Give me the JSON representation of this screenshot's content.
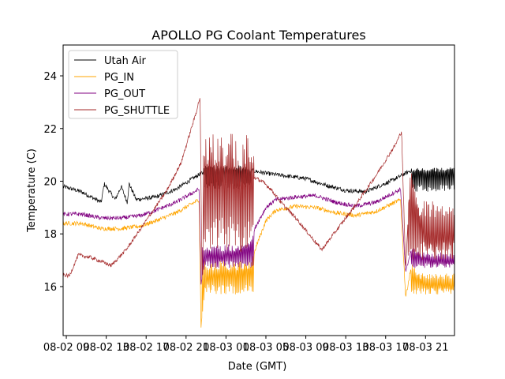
{
  "chart_data": {
    "type": "line",
    "title": "APOLLO PG Coolant Temperatures",
    "xlabel": "Date (GMT)",
    "ylabel": "Temperature (C)",
    "x_unit": "hours since 08-02 00:00 GMT",
    "xlim": [
      8.68,
      47.9
    ],
    "ylim": [
      14.14,
      25.17
    ],
    "x_ticks": [
      {
        "value": 9,
        "label": "08-02 09"
      },
      {
        "value": 13,
        "label": "08-02 13"
      },
      {
        "value": 17,
        "label": "08-02 17"
      },
      {
        "value": 21,
        "label": "08-02 21"
      },
      {
        "value": 25,
        "label": "08-03 01"
      },
      {
        "value": 29,
        "label": "08-03 05"
      },
      {
        "value": 33,
        "label": "08-03 09"
      },
      {
        "value": 37,
        "label": "08-03 13"
      },
      {
        "value": 41,
        "label": "08-03 17"
      },
      {
        "value": 45,
        "label": "08-03 21"
      }
    ],
    "y_ticks": [
      {
        "value": 16,
        "label": "16"
      },
      {
        "value": 18,
        "label": "18"
      },
      {
        "value": 20,
        "label": "20"
      },
      {
        "value": 22,
        "label": "22"
      },
      {
        "value": 24,
        "label": "24"
      }
    ],
    "grid": false,
    "legend_position": "top-left",
    "series": [
      {
        "name": "Utah Air",
        "color": "#000000",
        "noise": 0.08,
        "points": [
          [
            8.7,
            19.8
          ],
          [
            10.5,
            19.6
          ],
          [
            12.5,
            19.2
          ],
          [
            12.8,
            19.9
          ],
          [
            13.9,
            19.3
          ],
          [
            14.5,
            19.8
          ],
          [
            15.1,
            19.2
          ],
          [
            15.3,
            19.9
          ],
          [
            16.0,
            19.3
          ],
          [
            18.0,
            19.4
          ],
          [
            20.0,
            19.7
          ],
          [
            22.5,
            20.3
          ],
          [
            25.0,
            20.5
          ],
          [
            27.0,
            20.45
          ],
          [
            29.0,
            20.3
          ],
          [
            33.0,
            20.1
          ],
          [
            35.0,
            19.85
          ],
          [
            37.0,
            19.65
          ],
          [
            39.0,
            19.6
          ],
          [
            41.5,
            20.0
          ],
          [
            43.5,
            20.4
          ],
          [
            47.9,
            20.45
          ]
        ],
        "osc": [
          [
            22.8,
            27.5,
            19.7,
            20.6
          ],
          [
            43.6,
            47.9,
            19.6,
            20.5
          ]
        ]
      },
      {
        "name": "PG_IN",
        "color": "#ffa500",
        "noise": 0.08,
        "points": [
          [
            8.7,
            18.4
          ],
          [
            10.5,
            18.4
          ],
          [
            12.5,
            18.2
          ],
          [
            14.5,
            18.2
          ],
          [
            16.5,
            18.3
          ],
          [
            18.0,
            18.5
          ],
          [
            20.0,
            18.8
          ],
          [
            22.3,
            19.3
          ],
          [
            22.5,
            14.5
          ],
          [
            23.0,
            16.3
          ],
          [
            24.5,
            16.5
          ],
          [
            26.0,
            16.5
          ],
          [
            27.5,
            16.8
          ],
          [
            28.0,
            17.5
          ],
          [
            29.0,
            18.5
          ],
          [
            30.0,
            18.9
          ],
          [
            32.0,
            19.05
          ],
          [
            34.0,
            19.0
          ],
          [
            36.0,
            18.8
          ],
          [
            38.0,
            18.7
          ],
          [
            40.0,
            18.85
          ],
          [
            42.5,
            19.3
          ],
          [
            43.0,
            15.6
          ],
          [
            43.6,
            16.8
          ],
          [
            45.0,
            16.0
          ],
          [
            47.9,
            16.0
          ]
        ],
        "osc": [
          [
            22.6,
            27.8,
            15.7,
            17.0
          ],
          [
            43.5,
            47.9,
            15.7,
            16.5
          ]
        ]
      },
      {
        "name": "PG_OUT",
        "color": "#800080",
        "noise": 0.08,
        "points": [
          [
            8.7,
            18.75
          ],
          [
            10.5,
            18.75
          ],
          [
            12.5,
            18.6
          ],
          [
            14.5,
            18.6
          ],
          [
            16.5,
            18.7
          ],
          [
            18.0,
            18.9
          ],
          [
            20.0,
            19.2
          ],
          [
            22.3,
            19.7
          ],
          [
            22.5,
            16.1
          ],
          [
            23.0,
            17.2
          ],
          [
            24.5,
            17.1
          ],
          [
            26.0,
            17.3
          ],
          [
            27.5,
            17.7
          ],
          [
            28.0,
            18.3
          ],
          [
            29.0,
            19.0
          ],
          [
            30.0,
            19.3
          ],
          [
            32.0,
            19.4
          ],
          [
            34.0,
            19.45
          ],
          [
            36.0,
            19.2
          ],
          [
            38.0,
            19.05
          ],
          [
            40.0,
            19.2
          ],
          [
            42.5,
            19.7
          ],
          [
            43.0,
            16.5
          ],
          [
            43.6,
            17.5
          ],
          [
            45.0,
            17.0
          ],
          [
            47.9,
            16.9
          ]
        ],
        "osc": [
          [
            22.6,
            27.8,
            16.7,
            17.6
          ],
          [
            43.5,
            47.9,
            16.7,
            17.3
          ]
        ]
      },
      {
        "name": "PG_SHUTTLE",
        "color": "#a52a2a",
        "noise": 0.07,
        "points": [
          [
            8.7,
            16.45
          ],
          [
            9.3,
            16.4
          ],
          [
            10.2,
            17.2
          ],
          [
            11.5,
            17.1
          ],
          [
            13.5,
            16.8
          ],
          [
            15.0,
            17.4
          ],
          [
            17.0,
            18.5
          ],
          [
            19.0,
            19.6
          ],
          [
            20.5,
            20.7
          ],
          [
            22.0,
            22.6
          ],
          [
            22.4,
            23.2
          ],
          [
            22.6,
            16.1
          ],
          [
            22.9,
            20.5
          ],
          [
            27.5,
            20.2
          ],
          [
            28.6,
            20.0
          ],
          [
            29.5,
            19.7
          ],
          [
            30.5,
            19.2
          ],
          [
            32.0,
            18.6
          ],
          [
            33.5,
            17.9
          ],
          [
            34.6,
            17.4
          ],
          [
            36.0,
            18.1
          ],
          [
            38.0,
            19.1
          ],
          [
            40.0,
            20.2
          ],
          [
            42.0,
            21.4
          ],
          [
            42.6,
            21.9
          ],
          [
            43.0,
            16.6
          ],
          [
            43.5,
            20.5
          ],
          [
            45.0,
            17.6
          ],
          [
            47.9,
            17.8
          ]
        ],
        "osc": [
          [
            22.7,
            27.8,
            17.3,
            21.8
          ],
          [
            43.2,
            47.9,
            17.0,
            19.3
          ]
        ]
      }
    ]
  }
}
